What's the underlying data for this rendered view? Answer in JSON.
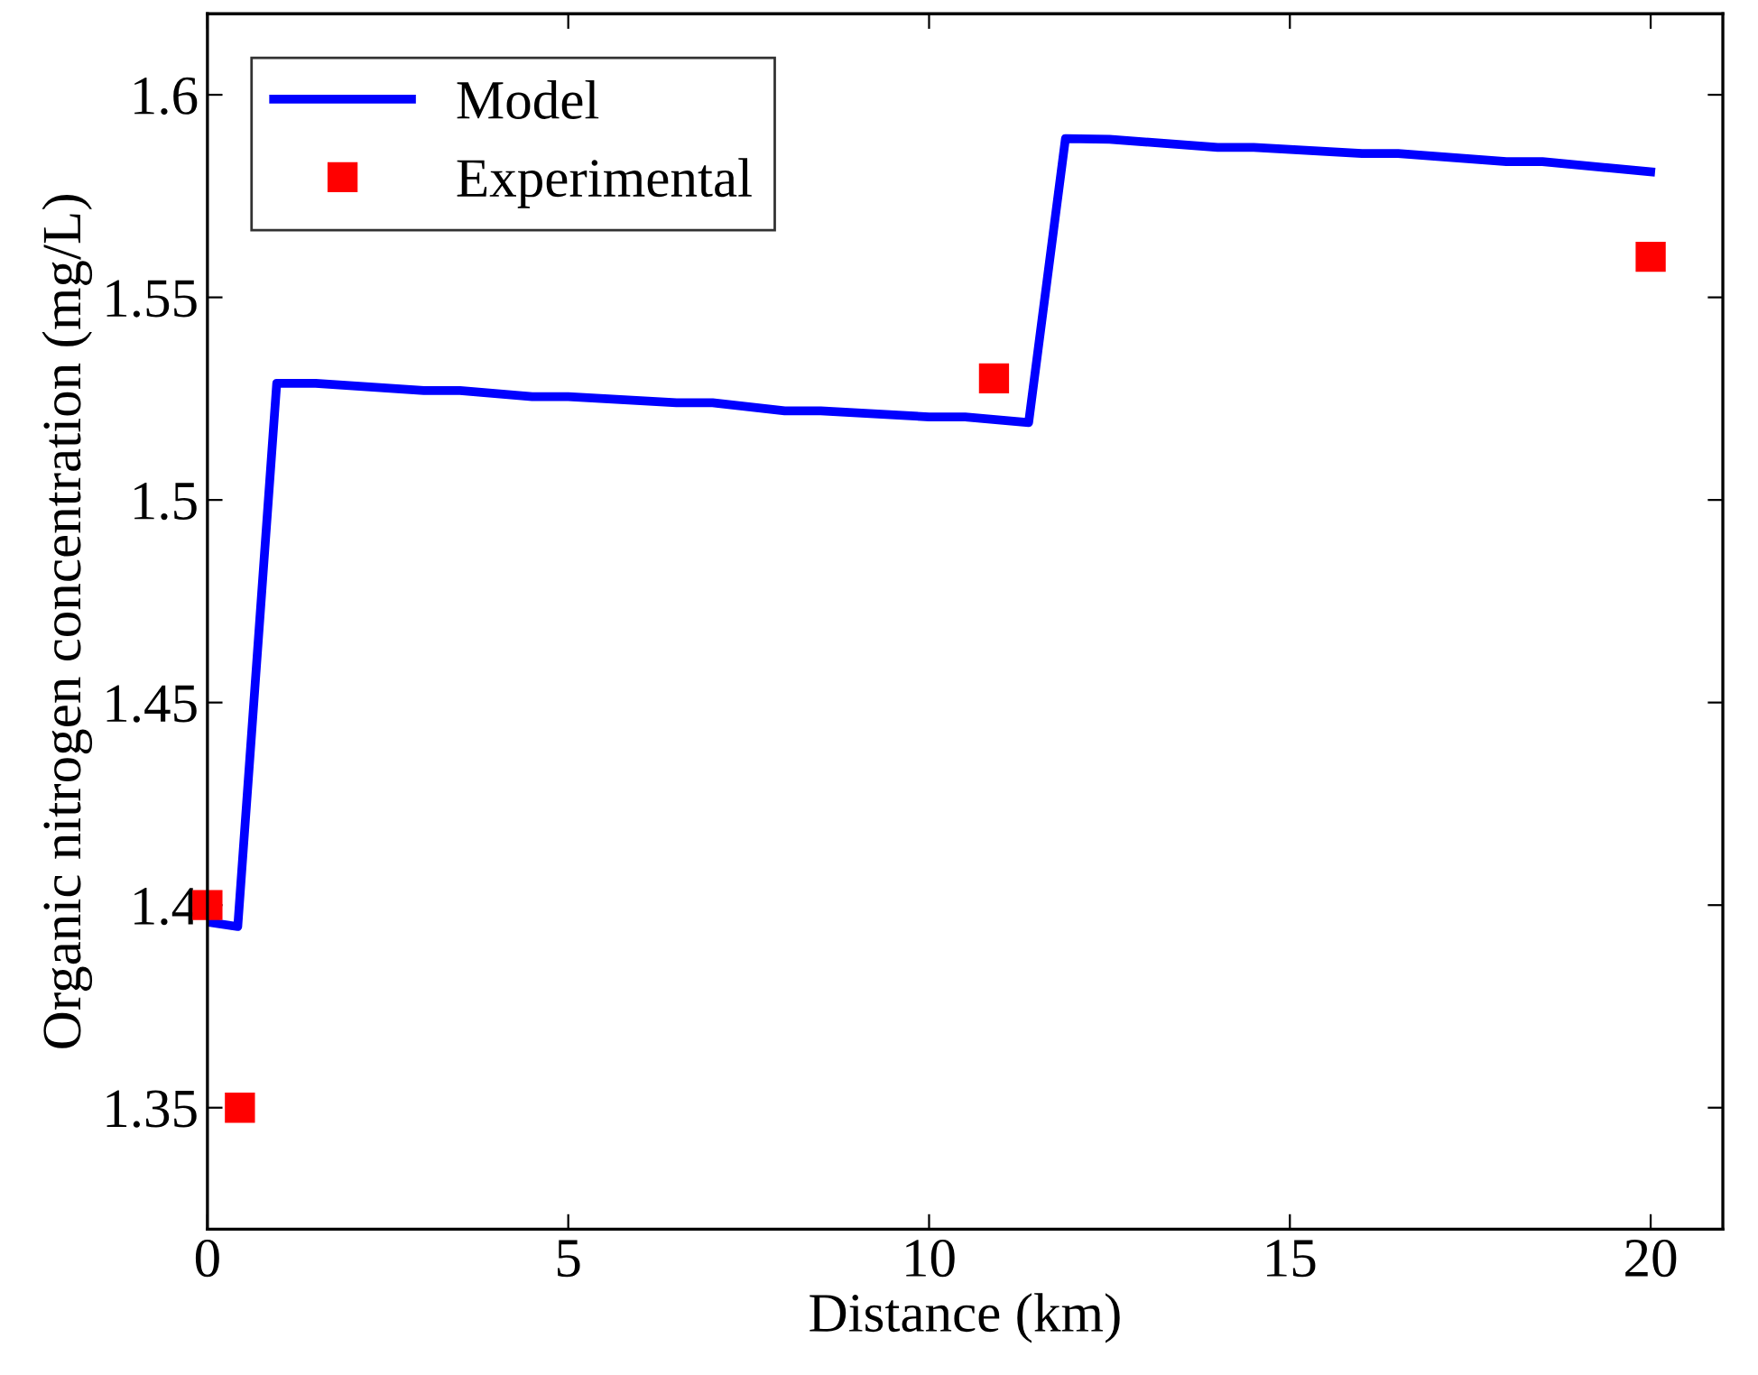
{
  "chart_data": {
    "type": "line",
    "xlabel": "Distance (km)",
    "ylabel": "Organic nitrogen concentration (mg/L)",
    "xlim": [
      0,
      21
    ],
    "xticks": [
      0,
      5,
      10,
      15,
      20
    ],
    "ylim": [
      1.32,
      1.62
    ],
    "yticks": [
      1.35,
      1.4,
      1.45,
      1.5,
      1.55,
      1.6
    ],
    "legend": "top left",
    "grid": false,
    "series": [
      {
        "name": "Model",
        "color": "#0000ff",
        "marker": "none",
        "line_style": "solid",
        "x": [
          0,
          0.42,
          0.96,
          1.5,
          3,
          3.5,
          4.5,
          5,
          6.5,
          7,
          8,
          8.5,
          10,
          10.5,
          11.38,
          11.89,
          12.5,
          14,
          14.5,
          16,
          16.5,
          18,
          18.5,
          20
        ],
        "values": [
          1.3958,
          1.3947,
          1.5288,
          1.5288,
          1.527,
          1.527,
          1.5255,
          1.5255,
          1.524,
          1.524,
          1.522,
          1.522,
          1.5205,
          1.5205,
          1.5191,
          1.5892,
          1.589,
          1.587,
          1.587,
          1.5855,
          1.5855,
          1.5835,
          1.5835,
          1.581
        ]
      },
      {
        "name": "Experimental",
        "type": "scatter",
        "color": "#ff0000",
        "marker": "square",
        "x": [
          0,
          0.45,
          10.9,
          20
        ],
        "values": [
          1.4,
          1.35,
          1.53,
          1.56
        ]
      }
    ]
  }
}
